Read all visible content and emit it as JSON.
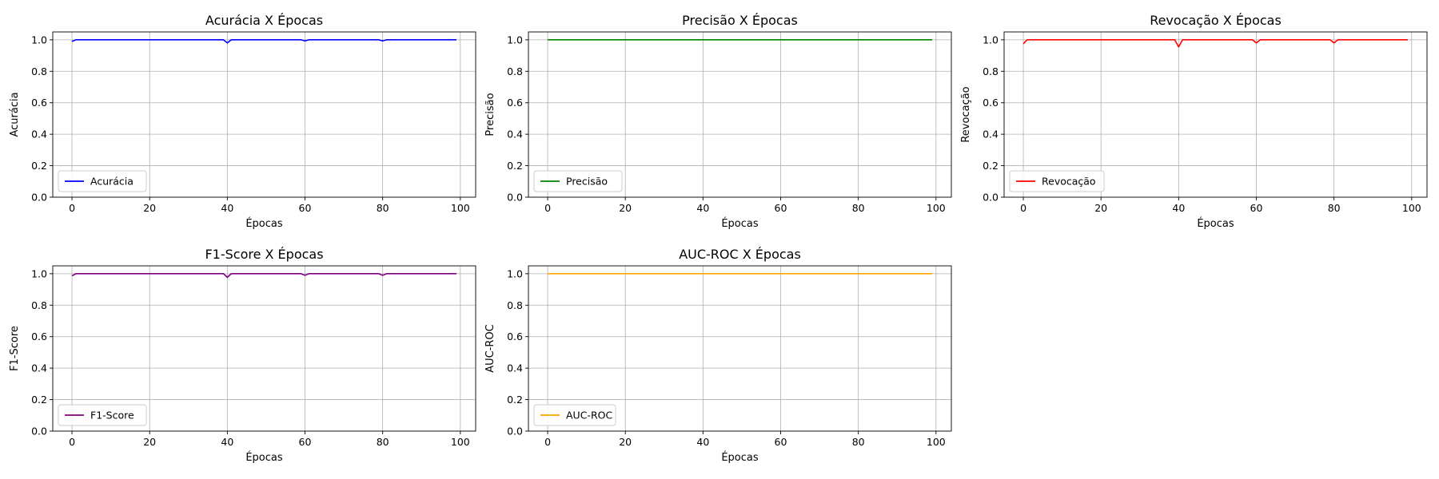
{
  "chart_data": [
    {
      "type": "line",
      "title": "Acurácia X Épocas",
      "xlabel": "Épocas",
      "ylabel": "Acurácia",
      "xlim": [
        -4.95,
        103.95
      ],
      "ylim": [
        0.0,
        1.05
      ],
      "xticks": [
        0,
        20,
        40,
        60,
        80,
        100
      ],
      "yticks": [
        0.0,
        0.2,
        0.4,
        0.6,
        0.8,
        1.0
      ],
      "xtick_labels": [
        "0",
        "20",
        "40",
        "60",
        "80",
        "100"
      ],
      "ytick_labels": [
        "0.0",
        "0.2",
        "0.4",
        "0.6",
        "0.8",
        "1.0"
      ],
      "grid": true,
      "legend_position": "lower-left",
      "series": [
        {
          "name": "Acurácia",
          "color": "#0000ff",
          "x": [
            0,
            1,
            39,
            40,
            41,
            59,
            60,
            61,
            79,
            80,
            81,
            99
          ],
          "y": [
            0.99,
            1.0,
            1.0,
            0.98,
            1.0,
            1.0,
            0.993,
            1.0,
            1.0,
            0.993,
            1.0,
            1.0
          ]
        }
      ]
    },
    {
      "type": "line",
      "title": "Precisão X Épocas",
      "xlabel": "Épocas",
      "ylabel": "Precisão",
      "xlim": [
        -4.95,
        103.95
      ],
      "ylim": [
        0.0,
        1.05
      ],
      "xticks": [
        0,
        20,
        40,
        60,
        80,
        100
      ],
      "yticks": [
        0.0,
        0.2,
        0.4,
        0.6,
        0.8,
        1.0
      ],
      "xtick_labels": [
        "0",
        "20",
        "40",
        "60",
        "80",
        "100"
      ],
      "ytick_labels": [
        "0.0",
        "0.2",
        "0.4",
        "0.6",
        "0.8",
        "1.0"
      ],
      "grid": true,
      "legend_position": "lower-left",
      "series": [
        {
          "name": "Precisão",
          "color": "#008000",
          "x": [
            0,
            99
          ],
          "y": [
            1.0,
            1.0
          ]
        }
      ]
    },
    {
      "type": "line",
      "title": "Revocação X Épocas",
      "xlabel": "Épocas",
      "ylabel": "Revocação",
      "xlim": [
        -4.95,
        103.95
      ],
      "ylim": [
        0.0,
        1.05
      ],
      "xticks": [
        0,
        20,
        40,
        60,
        80,
        100
      ],
      "yticks": [
        0.0,
        0.2,
        0.4,
        0.6,
        0.8,
        1.0
      ],
      "xtick_labels": [
        "0",
        "20",
        "40",
        "60",
        "80",
        "100"
      ],
      "ytick_labels": [
        "0.0",
        "0.2",
        "0.4",
        "0.6",
        "0.8",
        "1.0"
      ],
      "grid": true,
      "legend_position": "lower-left",
      "series": [
        {
          "name": "Revocação",
          "color": "#ff0000",
          "x": [
            0,
            1,
            39,
            40,
            41,
            59,
            60,
            61,
            79,
            80,
            81,
            99
          ],
          "y": [
            0.975,
            1.0,
            1.0,
            0.955,
            1.0,
            1.0,
            0.98,
            1.0,
            1.0,
            0.98,
            1.0,
            1.0
          ]
        }
      ]
    },
    {
      "type": "line",
      "title": "F1-Score X Épocas",
      "xlabel": "Épocas",
      "ylabel": "F1-Score",
      "xlim": [
        -4.95,
        103.95
      ],
      "ylim": [
        0.0,
        1.05
      ],
      "xticks": [
        0,
        20,
        40,
        60,
        80,
        100
      ],
      "yticks": [
        0.0,
        0.2,
        0.4,
        0.6,
        0.8,
        1.0
      ],
      "xtick_labels": [
        "0",
        "20",
        "40",
        "60",
        "80",
        "100"
      ],
      "ytick_labels": [
        "0.0",
        "0.2",
        "0.4",
        "0.6",
        "0.8",
        "1.0"
      ],
      "grid": true,
      "legend_position": "lower-left",
      "series": [
        {
          "name": "F1-Score",
          "color": "#800080",
          "x": [
            0,
            1,
            39,
            40,
            41,
            59,
            60,
            61,
            79,
            80,
            81,
            99
          ],
          "y": [
            0.987,
            1.0,
            1.0,
            0.977,
            1.0,
            1.0,
            0.99,
            1.0,
            1.0,
            0.99,
            1.0,
            1.0
          ]
        }
      ]
    },
    {
      "type": "line",
      "title": "AUC-ROC X Épocas",
      "xlabel": "Épocas",
      "ylabel": "AUC-ROC",
      "xlim": [
        -4.95,
        103.95
      ],
      "ylim": [
        0.0,
        1.05
      ],
      "xticks": [
        0,
        20,
        40,
        60,
        80,
        100
      ],
      "yticks": [
        0.0,
        0.2,
        0.4,
        0.6,
        0.8,
        1.0
      ],
      "xtick_labels": [
        "0",
        "20",
        "40",
        "60",
        "80",
        "100"
      ],
      "ytick_labels": [
        "0.0",
        "0.2",
        "0.4",
        "0.6",
        "0.8",
        "1.0"
      ],
      "grid": true,
      "legend_position": "lower-left",
      "series": [
        {
          "name": "AUC-ROC",
          "color": "#ffa500",
          "x": [
            0,
            99
          ],
          "y": [
            1.0,
            1.0
          ]
        }
      ]
    }
  ]
}
